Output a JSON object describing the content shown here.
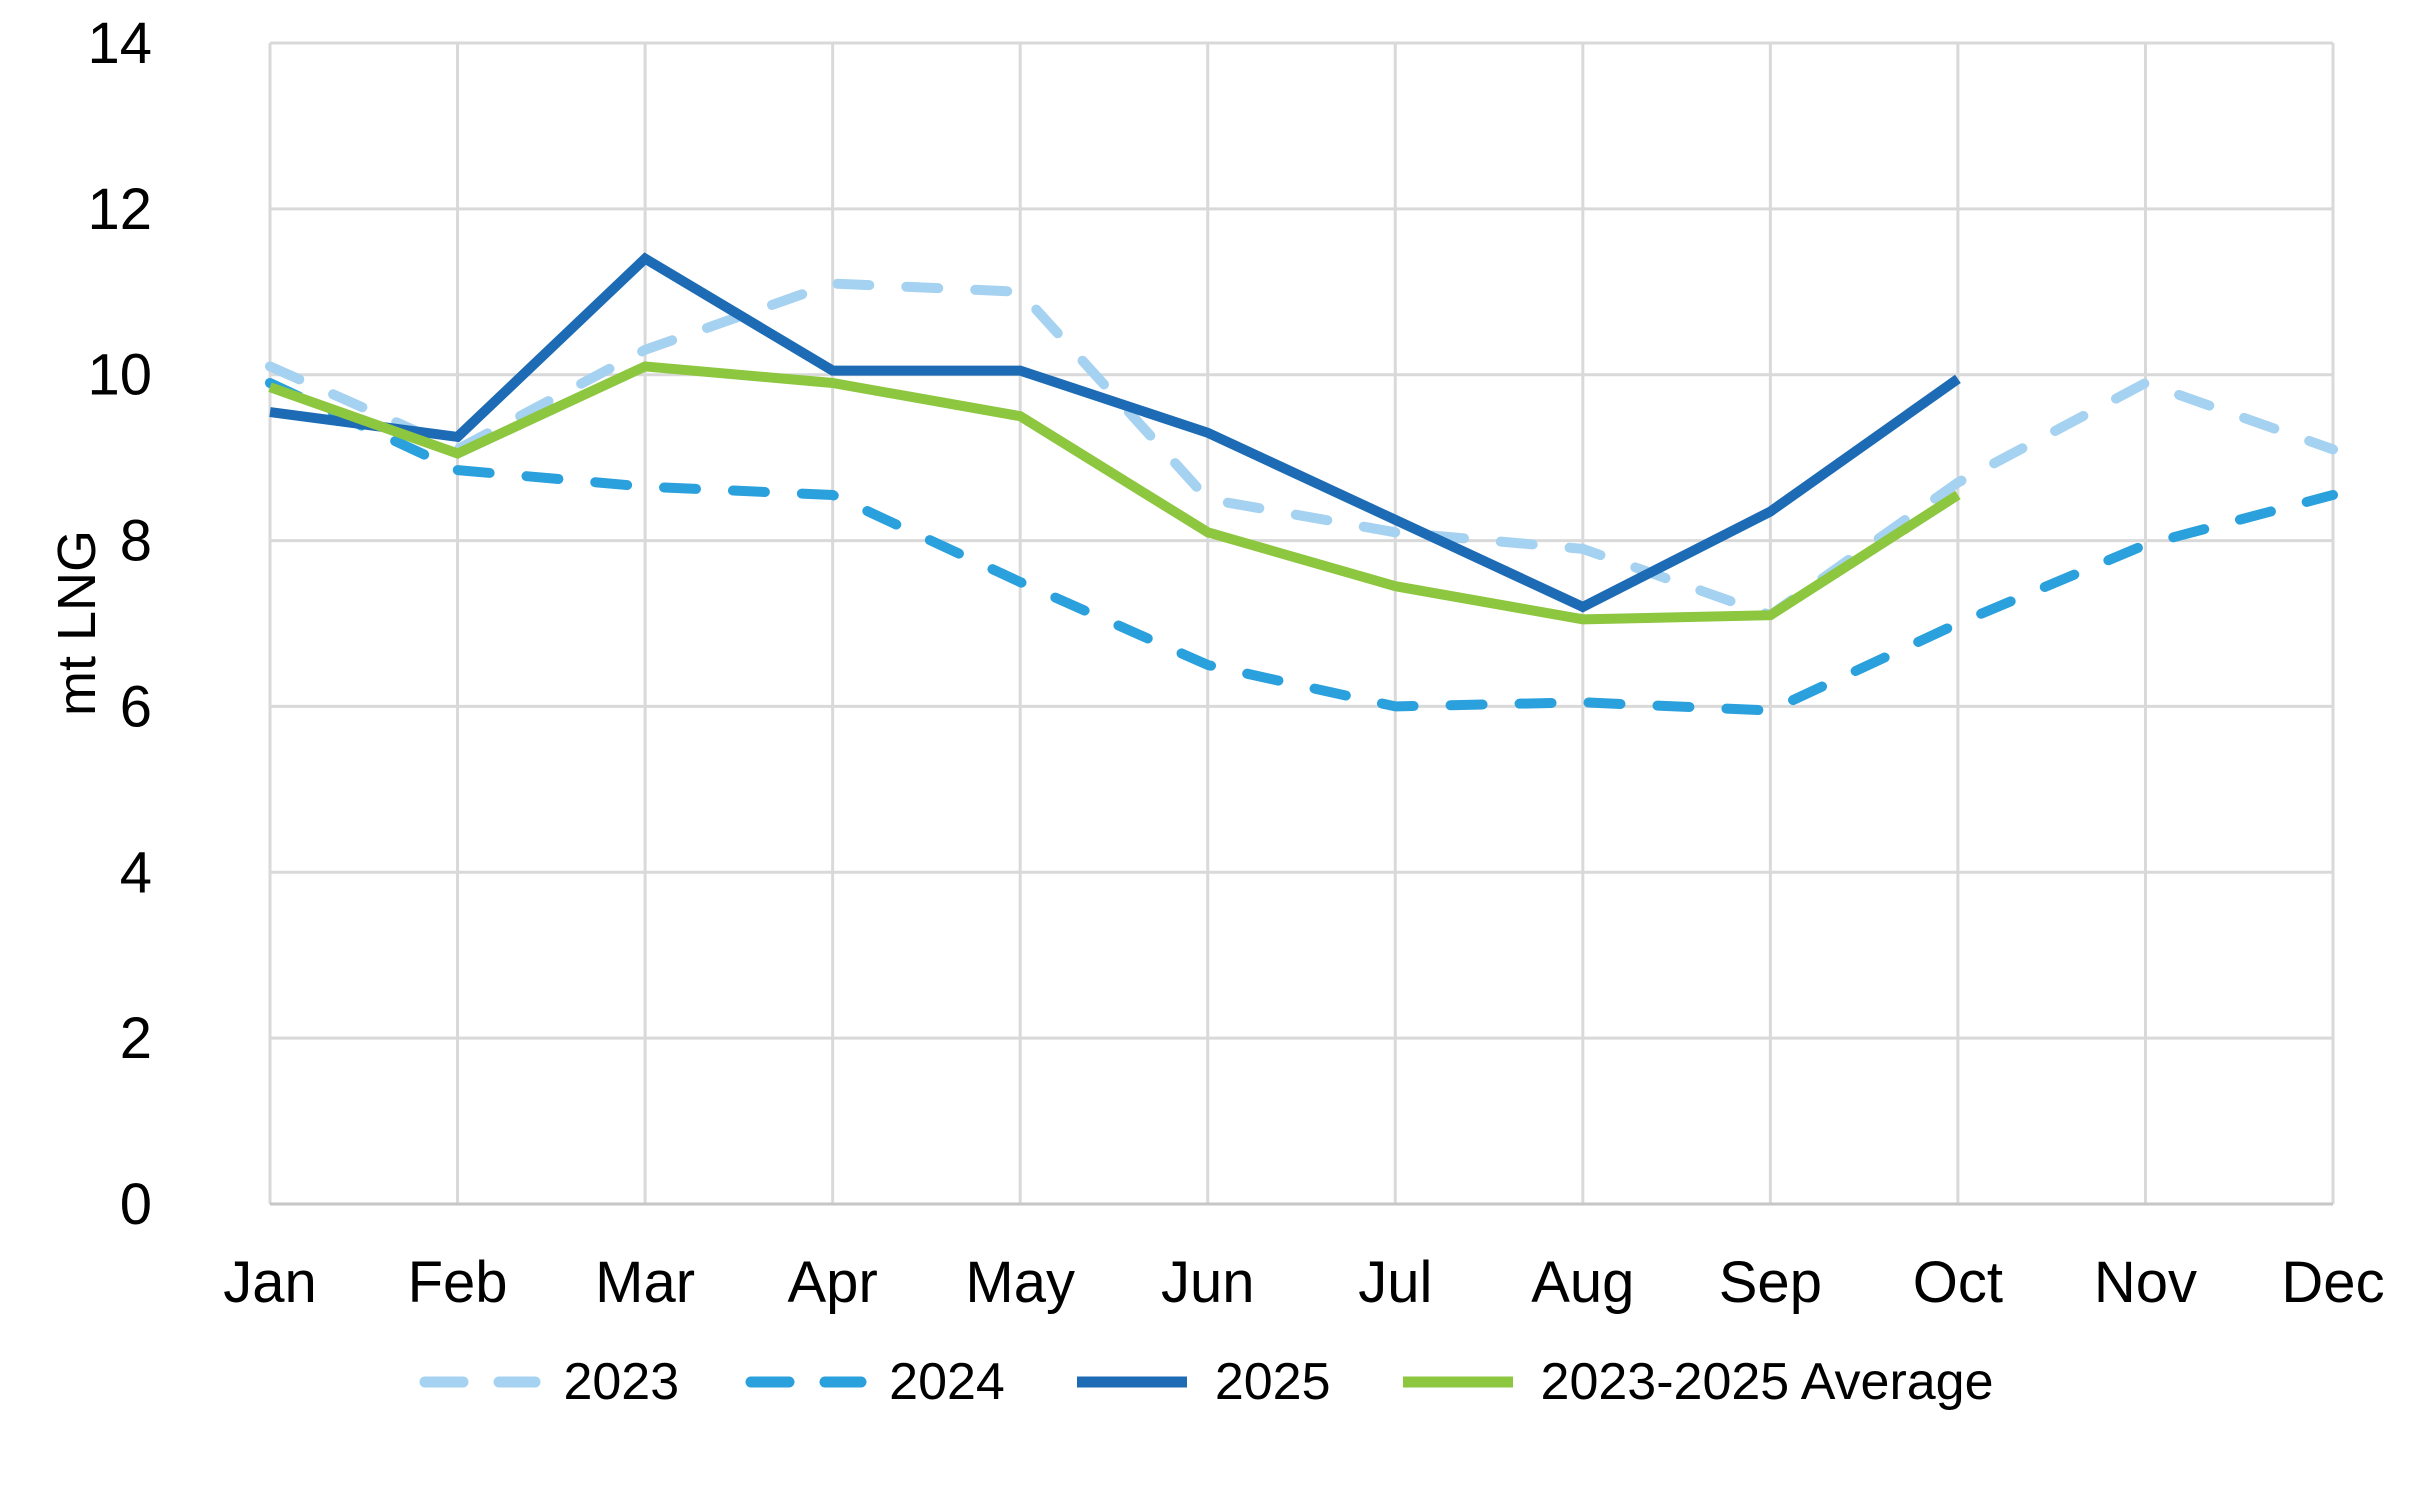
{
  "chart_data": {
    "type": "line",
    "title": "",
    "xlabel": "",
    "ylabel": "mt LNG",
    "ylim": [
      0,
      14
    ],
    "yticks": [
      0,
      2,
      4,
      6,
      8,
      10,
      12,
      14
    ],
    "grid": true,
    "legend_position": "bottom",
    "x": [
      "Jan",
      "Feb",
      "Mar",
      "Apr",
      "May",
      "Jun",
      "Jul",
      "Aug",
      "Sep",
      "Oct",
      "Nov",
      "Dec"
    ],
    "series": [
      {
        "name": "2023",
        "style": "dashed",
        "color": "#A5D2F0",
        "values": [
          10.1,
          9.1,
          10.3,
          11.1,
          11.0,
          8.5,
          8.1,
          7.9,
          7.1,
          8.7,
          9.9,
          9.1
        ]
      },
      {
        "name": "2024",
        "style": "dashed",
        "color": "#2AA0DC",
        "values": [
          9.9,
          8.85,
          8.65,
          8.55,
          7.5,
          6.5,
          6.0,
          6.05,
          5.95,
          7.0,
          7.95,
          8.55
        ]
      },
      {
        "name": "2025",
        "style": "solid",
        "color": "#1C6BB4",
        "values": [
          9.55,
          9.25,
          11.4,
          10.05,
          10.05,
          9.3,
          8.25,
          7.2,
          8.35,
          9.95,
          null,
          null
        ]
      },
      {
        "name": "2023-2025 Average",
        "style": "solid",
        "color": "#8DC63F",
        "values": [
          9.85,
          9.05,
          10.1,
          9.9,
          9.5,
          8.1,
          7.45,
          7.05,
          7.1,
          8.55,
          null,
          null
        ]
      }
    ],
    "colors": {
      "gridline": "#D9D9D9",
      "axis_line": "#C6C6C6",
      "text": "#000000"
    }
  }
}
